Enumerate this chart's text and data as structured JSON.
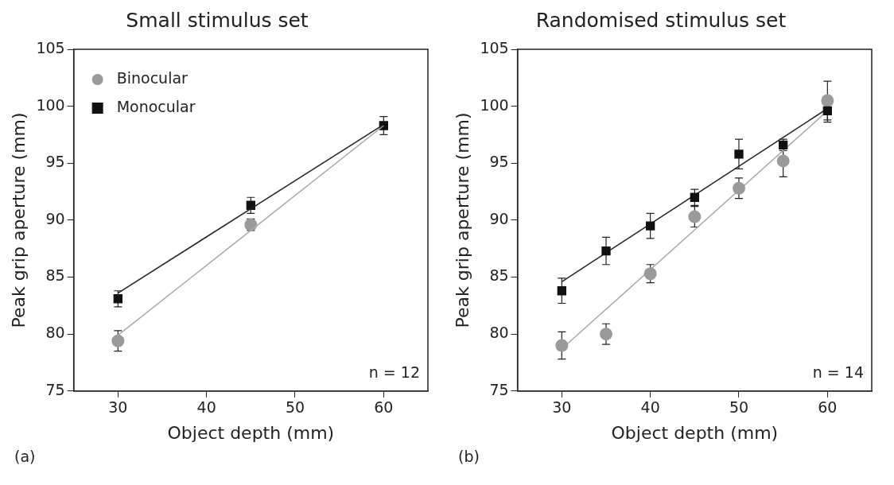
{
  "chart_data": [
    {
      "type": "scatter",
      "title": "Small stimulus set",
      "xlabel": "Object depth (mm)",
      "ylabel": "Peak grip aperture (mm)",
      "xlim": [
        25,
        65
      ],
      "xticks": [
        30,
        40,
        50,
        60
      ],
      "ylim": [
        75,
        105
      ],
      "yticks": [
        75,
        80,
        85,
        90,
        95,
        100,
        105
      ],
      "grid": false,
      "legend": "top left",
      "annotations": [
        "n = 12",
        "(a)"
      ],
      "series": [
        {
          "name": "Binocular",
          "type": "scatter",
          "marker": "circle",
          "color": "#9a9a9a",
          "x": [
            30,
            45
          ],
          "values": [
            79.4,
            89.6
          ],
          "errors": [
            0.9,
            0.5
          ]
        },
        {
          "name": "Monocular",
          "type": "scatter",
          "marker": "square",
          "color": "#111111",
          "x": [
            30,
            45,
            60
          ],
          "values": [
            83.1,
            91.3,
            98.3
          ],
          "errors": [
            0.7,
            0.7,
            0.8
          ]
        },
        {
          "type": "line",
          "marker": "none",
          "color": "#a8a8a8",
          "x": [
            30,
            60
          ],
          "values": [
            79.9,
            98.3
          ]
        },
        {
          "type": "line",
          "marker": "none",
          "color": "#222222",
          "x": [
            30,
            60
          ],
          "values": [
            83.6,
            98.4
          ]
        }
      ]
    },
    {
      "type": "scatter",
      "title": "Randomised stimulus set",
      "xlabel": "Object depth (mm)",
      "ylabel": "Peak grip aperture (mm)",
      "xlim": [
        25,
        65
      ],
      "xticks": [
        30,
        40,
        50,
        60
      ],
      "ylim": [
        75,
        105
      ],
      "yticks": [
        75,
        80,
        85,
        90,
        95,
        100,
        105
      ],
      "grid": false,
      "annotations": [
        "n = 14",
        "(b)"
      ],
      "series": [
        {
          "type": "line",
          "marker": "none",
          "color": "#a8a8a8",
          "x": [
            30,
            60
          ],
          "values": [
            78.7,
            99.6
          ]
        },
        {
          "type": "line",
          "marker": "none",
          "color": "#222222",
          "x": [
            30,
            60
          ],
          "values": [
            84.6,
            99.8
          ]
        },
        {
          "type": "scatter",
          "marker": "circle",
          "color": "#9a9a9a",
          "x": [
            30,
            35,
            40,
            45,
            50,
            55,
            60
          ],
          "values": [
            79.0,
            80.0,
            85.3,
            90.3,
            92.8,
            95.2,
            100.5
          ],
          "errors": [
            1.2,
            0.9,
            0.8,
            0.9,
            0.9,
            1.4,
            1.7
          ]
        },
        {
          "type": "scatter",
          "marker": "square",
          "color": "#111111",
          "x": [
            30,
            35,
            40,
            45,
            50,
            55,
            60
          ],
          "values": [
            83.8,
            87.3,
            89.5,
            92.0,
            95.8,
            96.6,
            99.6
          ],
          "errors": [
            1.1,
            1.2,
            1.1,
            0.7,
            1.3,
            0.5,
            1.0
          ]
        }
      ]
    }
  ]
}
